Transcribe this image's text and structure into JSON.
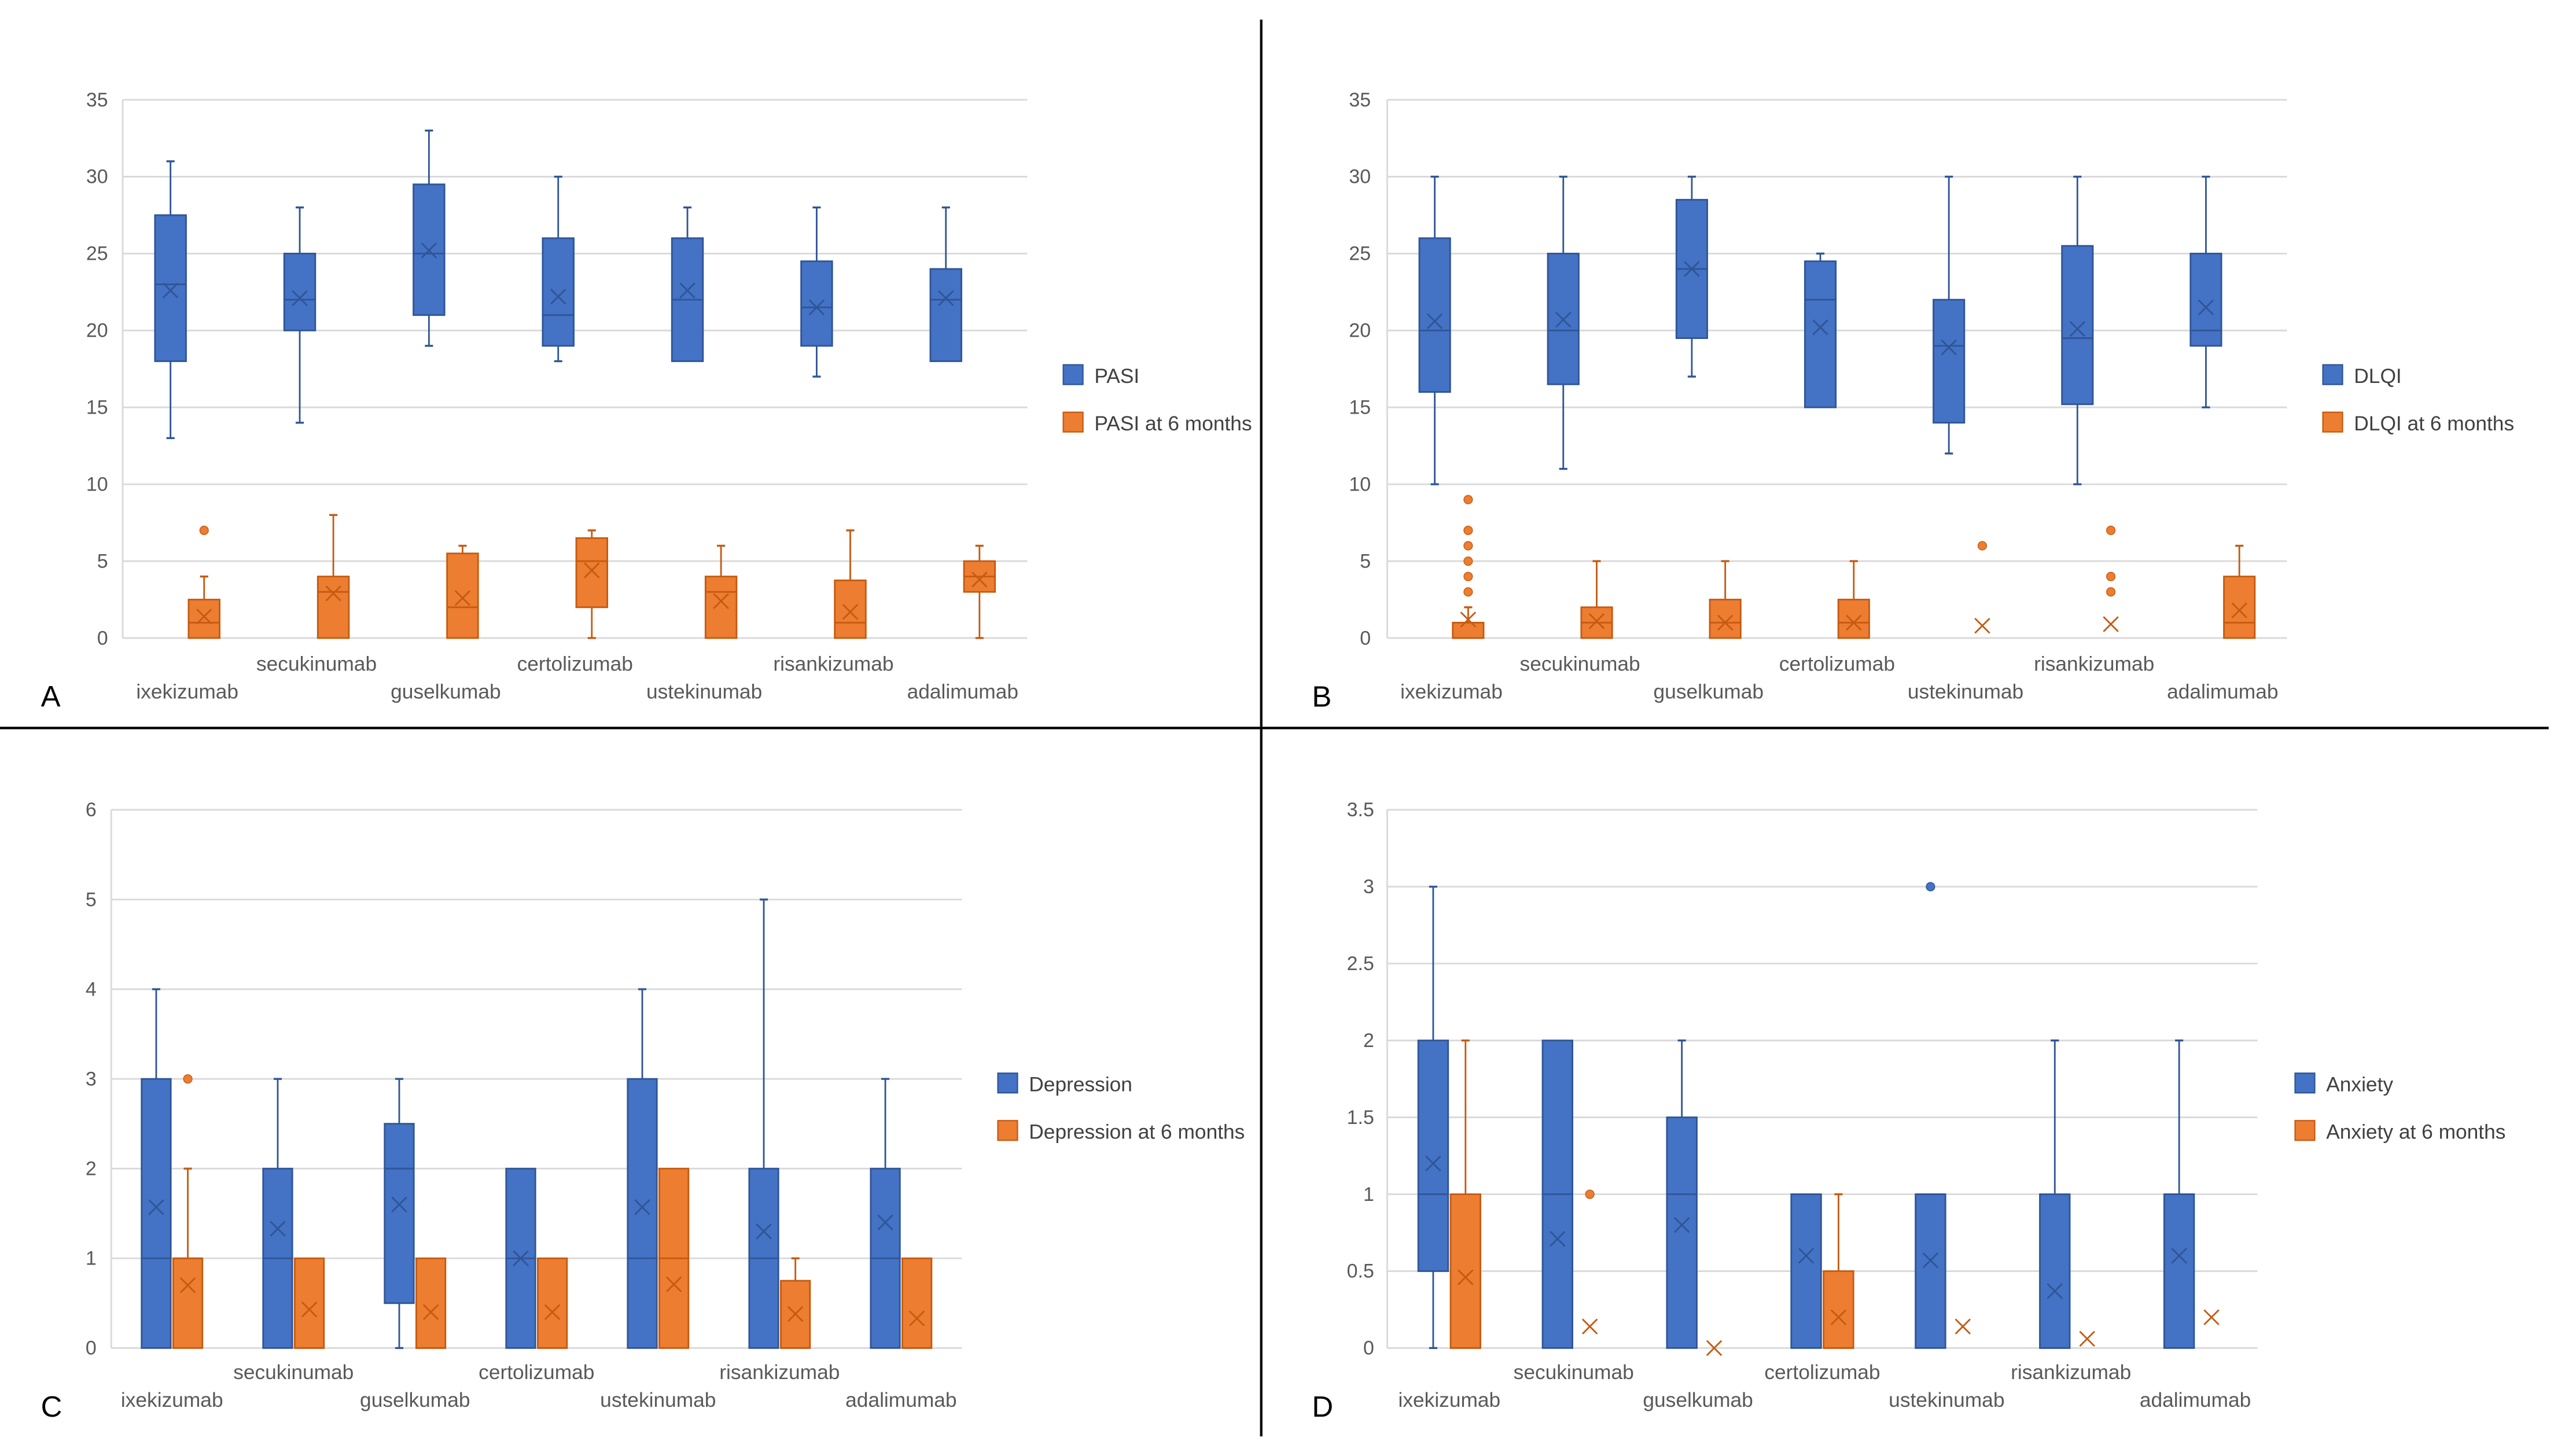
{
  "colors": {
    "blue": "#4472C4",
    "blue_dark": "#2F5597",
    "orange": "#ED7D31",
    "orange_dark": "#C55A11",
    "grid": "#D9D9D9"
  },
  "chart_data": [
    {
      "type": "box",
      "panel_letter": "A",
      "categories": [
        "ixekizumab",
        "secukinumab",
        "guselkumab",
        "certolizumab",
        "ustekinumab",
        "risankizumab",
        "adalimumab"
      ],
      "ylim": [
        0,
        35
      ],
      "yticks": [
        0,
        5,
        10,
        15,
        20,
        25,
        30,
        35
      ],
      "grid": true,
      "legend": "right",
      "series": [
        {
          "name": "PASI",
          "color": "blue",
          "boxes": [
            {
              "min": 13,
              "q1": 18,
              "median": 23,
              "q3": 27.5,
              "max": 31,
              "mean": 22.6,
              "outliers": []
            },
            {
              "min": 14,
              "q1": 20,
              "median": 22,
              "q3": 25,
              "max": 28,
              "mean": 22.1,
              "outliers": []
            },
            {
              "min": 19,
              "q1": 21,
              "median": 25,
              "q3": 29.5,
              "max": 33,
              "mean": 25.2,
              "outliers": []
            },
            {
              "min": 18,
              "q1": 19,
              "median": 21,
              "q3": 26,
              "max": 30,
              "mean": 22.2,
              "outliers": []
            },
            {
              "min": 18,
              "q1": 18,
              "median": 22,
              "q3": 26,
              "max": 28,
              "mean": 22.6,
              "outliers": []
            },
            {
              "min": 17,
              "q1": 19,
              "median": 21.5,
              "q3": 24.5,
              "max": 28,
              "mean": 21.5,
              "outliers": []
            },
            {
              "min": 18,
              "q1": 18,
              "median": 22,
              "q3": 24,
              "max": 28,
              "mean": 22.1,
              "outliers": []
            }
          ]
        },
        {
          "name": "PASI at 6 months",
          "color": "orange",
          "boxes": [
            {
              "min": 0,
              "q1": 0,
              "median": 1,
              "q3": 2.5,
              "max": 4,
              "mean": 1.4,
              "outliers": [
                7
              ]
            },
            {
              "min": 0,
              "q1": 0,
              "median": 3,
              "q3": 4,
              "max": 8,
              "mean": 2.9,
              "outliers": []
            },
            {
              "min": 0,
              "q1": 0,
              "median": 2,
              "q3": 5.5,
              "max": 6,
              "mean": 2.6,
              "outliers": []
            },
            {
              "min": 0,
              "q1": 2,
              "median": 5,
              "q3": 6.5,
              "max": 7,
              "mean": 4.4,
              "outliers": []
            },
            {
              "min": 0,
              "q1": 0,
              "median": 3,
              "q3": 4,
              "max": 6,
              "mean": 2.4,
              "outliers": []
            },
            {
              "min": 0,
              "q1": 0,
              "median": 1,
              "q3": 3.75,
              "max": 7,
              "mean": 1.7,
              "outliers": []
            },
            {
              "min": 0,
              "q1": 3,
              "median": 4,
              "q3": 5,
              "max": 6,
              "mean": 3.8,
              "outliers": []
            }
          ]
        }
      ]
    },
    {
      "type": "box",
      "panel_letter": "B",
      "categories": [
        "ixekizumab",
        "secukinumab",
        "guselkumab",
        "certolizumab",
        "ustekinumab",
        "risankizumab",
        "adalimumab"
      ],
      "ylim": [
        0,
        35
      ],
      "yticks": [
        0,
        5,
        10,
        15,
        20,
        25,
        30,
        35
      ],
      "grid": true,
      "legend": "right",
      "series": [
        {
          "name": "DLQI",
          "color": "blue",
          "boxes": [
            {
              "min": 10,
              "q1": 16,
              "median": 20,
              "q3": 26,
              "max": 30,
              "mean": 20.6,
              "outliers": []
            },
            {
              "min": 11,
              "q1": 16.5,
              "median": 20,
              "q3": 25,
              "max": 30,
              "mean": 20.7,
              "outliers": []
            },
            {
              "min": 17,
              "q1": 19.5,
              "median": 24,
              "q3": 28.5,
              "max": 30,
              "mean": 24,
              "outliers": []
            },
            {
              "min": 15,
              "q1": 15,
              "median": 22,
              "q3": 24.5,
              "max": 25,
              "mean": 20.2,
              "outliers": []
            },
            {
              "min": 12,
              "q1": 14,
              "median": 19,
              "q3": 22,
              "max": 30,
              "mean": 18.9,
              "outliers": []
            },
            {
              "min": 10,
              "q1": 15.2,
              "median": 19.5,
              "q3": 25.5,
              "max": 30,
              "mean": 20.1,
              "outliers": []
            },
            {
              "min": 15,
              "q1": 19,
              "median": 20,
              "q3": 25,
              "max": 30,
              "mean": 21.5,
              "outliers": []
            }
          ]
        },
        {
          "name": "DLQI at 6 months",
          "color": "orange",
          "boxes": [
            {
              "min": 0,
              "q1": 0,
              "median": 0,
              "q3": 1,
              "max": 2,
              "mean": 1.2,
              "outliers": [
                3,
                4,
                5,
                6,
                7,
                9
              ]
            },
            {
              "min": 0,
              "q1": 0,
              "median": 1,
              "q3": 2,
              "max": 5,
              "mean": 1.1,
              "outliers": []
            },
            {
              "min": 0,
              "q1": 0,
              "median": 1,
              "q3": 2.5,
              "max": 5,
              "mean": 1,
              "outliers": []
            },
            {
              "min": 0,
              "q1": 0,
              "median": 1,
              "q3": 2.5,
              "max": 5,
              "mean": 1,
              "outliers": []
            },
            {
              "min": 0,
              "q1": 0,
              "median": 0,
              "q3": 0,
              "max": 0,
              "mean": 0.8,
              "outliers": [
                6
              ]
            },
            {
              "min": 0,
              "q1": 0,
              "median": 0,
              "q3": 0,
              "max": 0,
              "mean": 0.9,
              "outliers": [
                3,
                4,
                7
              ]
            },
            {
              "min": 0,
              "q1": 0,
              "median": 1,
              "q3": 4,
              "max": 6,
              "mean": 1.8,
              "outliers": []
            }
          ]
        }
      ]
    },
    {
      "type": "box",
      "panel_letter": "C",
      "categories": [
        "ixekizumab",
        "secukinumab",
        "guselkumab",
        "certolizumab",
        "ustekinumab",
        "risankizumab",
        "adalimumab"
      ],
      "ylim": [
        0,
        6
      ],
      "yticks": [
        0,
        1,
        2,
        3,
        4,
        5,
        6
      ],
      "grid": true,
      "legend": "right",
      "series": [
        {
          "name": "Depression",
          "color": "blue",
          "boxes": [
            {
              "min": 0,
              "q1": 0,
              "median": 1,
              "q3": 3,
              "max": 4,
              "mean": 1.57,
              "outliers": []
            },
            {
              "min": 0,
              "q1": 0,
              "median": 1,
              "q3": 2,
              "max": 3,
              "mean": 1.33,
              "outliers": []
            },
            {
              "min": 0,
              "q1": 0.5,
              "median": 2,
              "q3": 2.5,
              "max": 3,
              "mean": 1.6,
              "outliers": []
            },
            {
              "min": 0,
              "q1": 0,
              "median": 1,
              "q3": 2,
              "max": 2,
              "mean": 1,
              "outliers": []
            },
            {
              "min": 0,
              "q1": 0,
              "median": 1,
              "q3": 3,
              "max": 4,
              "mean": 1.57,
              "outliers": []
            },
            {
              "min": 0,
              "q1": 0,
              "median": 1,
              "q3": 2,
              "max": 5,
              "mean": 1.3,
              "outliers": []
            },
            {
              "min": 0,
              "q1": 0,
              "median": 1,
              "q3": 2,
              "max": 3,
              "mean": 1.4,
              "outliers": []
            }
          ]
        },
        {
          "name": "Depression at 6 months",
          "color": "orange",
          "boxes": [
            {
              "min": 0,
              "q1": 0,
              "median": 1,
              "q3": 1,
              "max": 2,
              "mean": 0.7,
              "outliers": [
                3
              ]
            },
            {
              "min": 0,
              "q1": 0,
              "median": 0,
              "q3": 1,
              "max": 1,
              "mean": 0.43,
              "outliers": []
            },
            {
              "min": 0,
              "q1": 0,
              "median": 0,
              "q3": 1,
              "max": 1,
              "mean": 0.4,
              "outliers": []
            },
            {
              "min": 0,
              "q1": 0,
              "median": 0,
              "q3": 1,
              "max": 1,
              "mean": 0.4,
              "outliers": []
            },
            {
              "min": 0,
              "q1": 0,
              "median": 1,
              "q3": 2,
              "max": 2,
              "mean": 0.71,
              "outliers": []
            },
            {
              "min": 0,
              "q1": 0,
              "median": 0,
              "q3": 0.75,
              "max": 1,
              "mean": 0.38,
              "outliers": []
            },
            {
              "min": 0,
              "q1": 0,
              "median": 0,
              "q3": 1,
              "max": 1,
              "mean": 0.33,
              "outliers": []
            }
          ]
        }
      ]
    },
    {
      "type": "box",
      "panel_letter": "D",
      "categories": [
        "ixekizumab",
        "secukinumab",
        "guselkumab",
        "certolizumab",
        "ustekinumab",
        "risankizumab",
        "adalimumab"
      ],
      "ylim": [
        0,
        3.5
      ],
      "yticks": [
        0,
        0.5,
        1,
        1.5,
        2,
        2.5,
        3,
        3.5
      ],
      "grid": true,
      "legend": "right",
      "series": [
        {
          "name": "Anxiety",
          "color": "blue",
          "boxes": [
            {
              "min": 0,
              "q1": 0.5,
              "median": 1,
              "q3": 2,
              "max": 3,
              "mean": 1.2,
              "outliers": []
            },
            {
              "min": 0,
              "q1": 0,
              "median": 1,
              "q3": 2,
              "max": 2,
              "mean": 0.71,
              "outliers": []
            },
            {
              "min": 0,
              "q1": 0,
              "median": 1,
              "q3": 1.5,
              "max": 2,
              "mean": 0.8,
              "outliers": []
            },
            {
              "min": 0,
              "q1": 0,
              "median": 1,
              "q3": 1,
              "max": 1,
              "mean": 0.6,
              "outliers": []
            },
            {
              "min": 0,
              "q1": 0,
              "median": 1,
              "q3": 1,
              "max": 1,
              "mean": 0.57,
              "outliers": [
                3
              ]
            },
            {
              "min": 0,
              "q1": 0,
              "median": 0,
              "q3": 1,
              "max": 2,
              "mean": 0.37,
              "outliers": []
            },
            {
              "min": 0,
              "q1": 0,
              "median": 1,
              "q3": 1,
              "max": 2,
              "mean": 0.6,
              "outliers": []
            }
          ]
        },
        {
          "name": "Anxiety at 6 months",
          "color": "orange",
          "boxes": [
            {
              "min": 0,
              "q1": 0,
              "median": 0,
              "q3": 1,
              "max": 2,
              "mean": 0.46,
              "outliers": []
            },
            {
              "min": 0,
              "q1": 0,
              "median": 0,
              "q3": 0,
              "max": 0,
              "mean": 0.14,
              "outliers": [
                1
              ]
            },
            {
              "min": 0,
              "q1": 0,
              "median": 0,
              "q3": 0,
              "max": 0,
              "mean": 0,
              "outliers": []
            },
            {
              "min": 0,
              "q1": 0,
              "median": 0,
              "q3": 0.5,
              "max": 1,
              "mean": 0.2,
              "outliers": []
            },
            {
              "min": 0,
              "q1": 0,
              "median": 0,
              "q3": 0,
              "max": 0,
              "mean": 0.14,
              "outliers": []
            },
            {
              "min": 0,
              "q1": 0,
              "median": 0,
              "q3": 0,
              "max": 0,
              "mean": 0.06,
              "outliers": []
            },
            {
              "min": 0,
              "q1": 0,
              "median": 0,
              "q3": 0,
              "max": 0,
              "mean": 0.2,
              "outliers": []
            }
          ]
        }
      ]
    }
  ]
}
